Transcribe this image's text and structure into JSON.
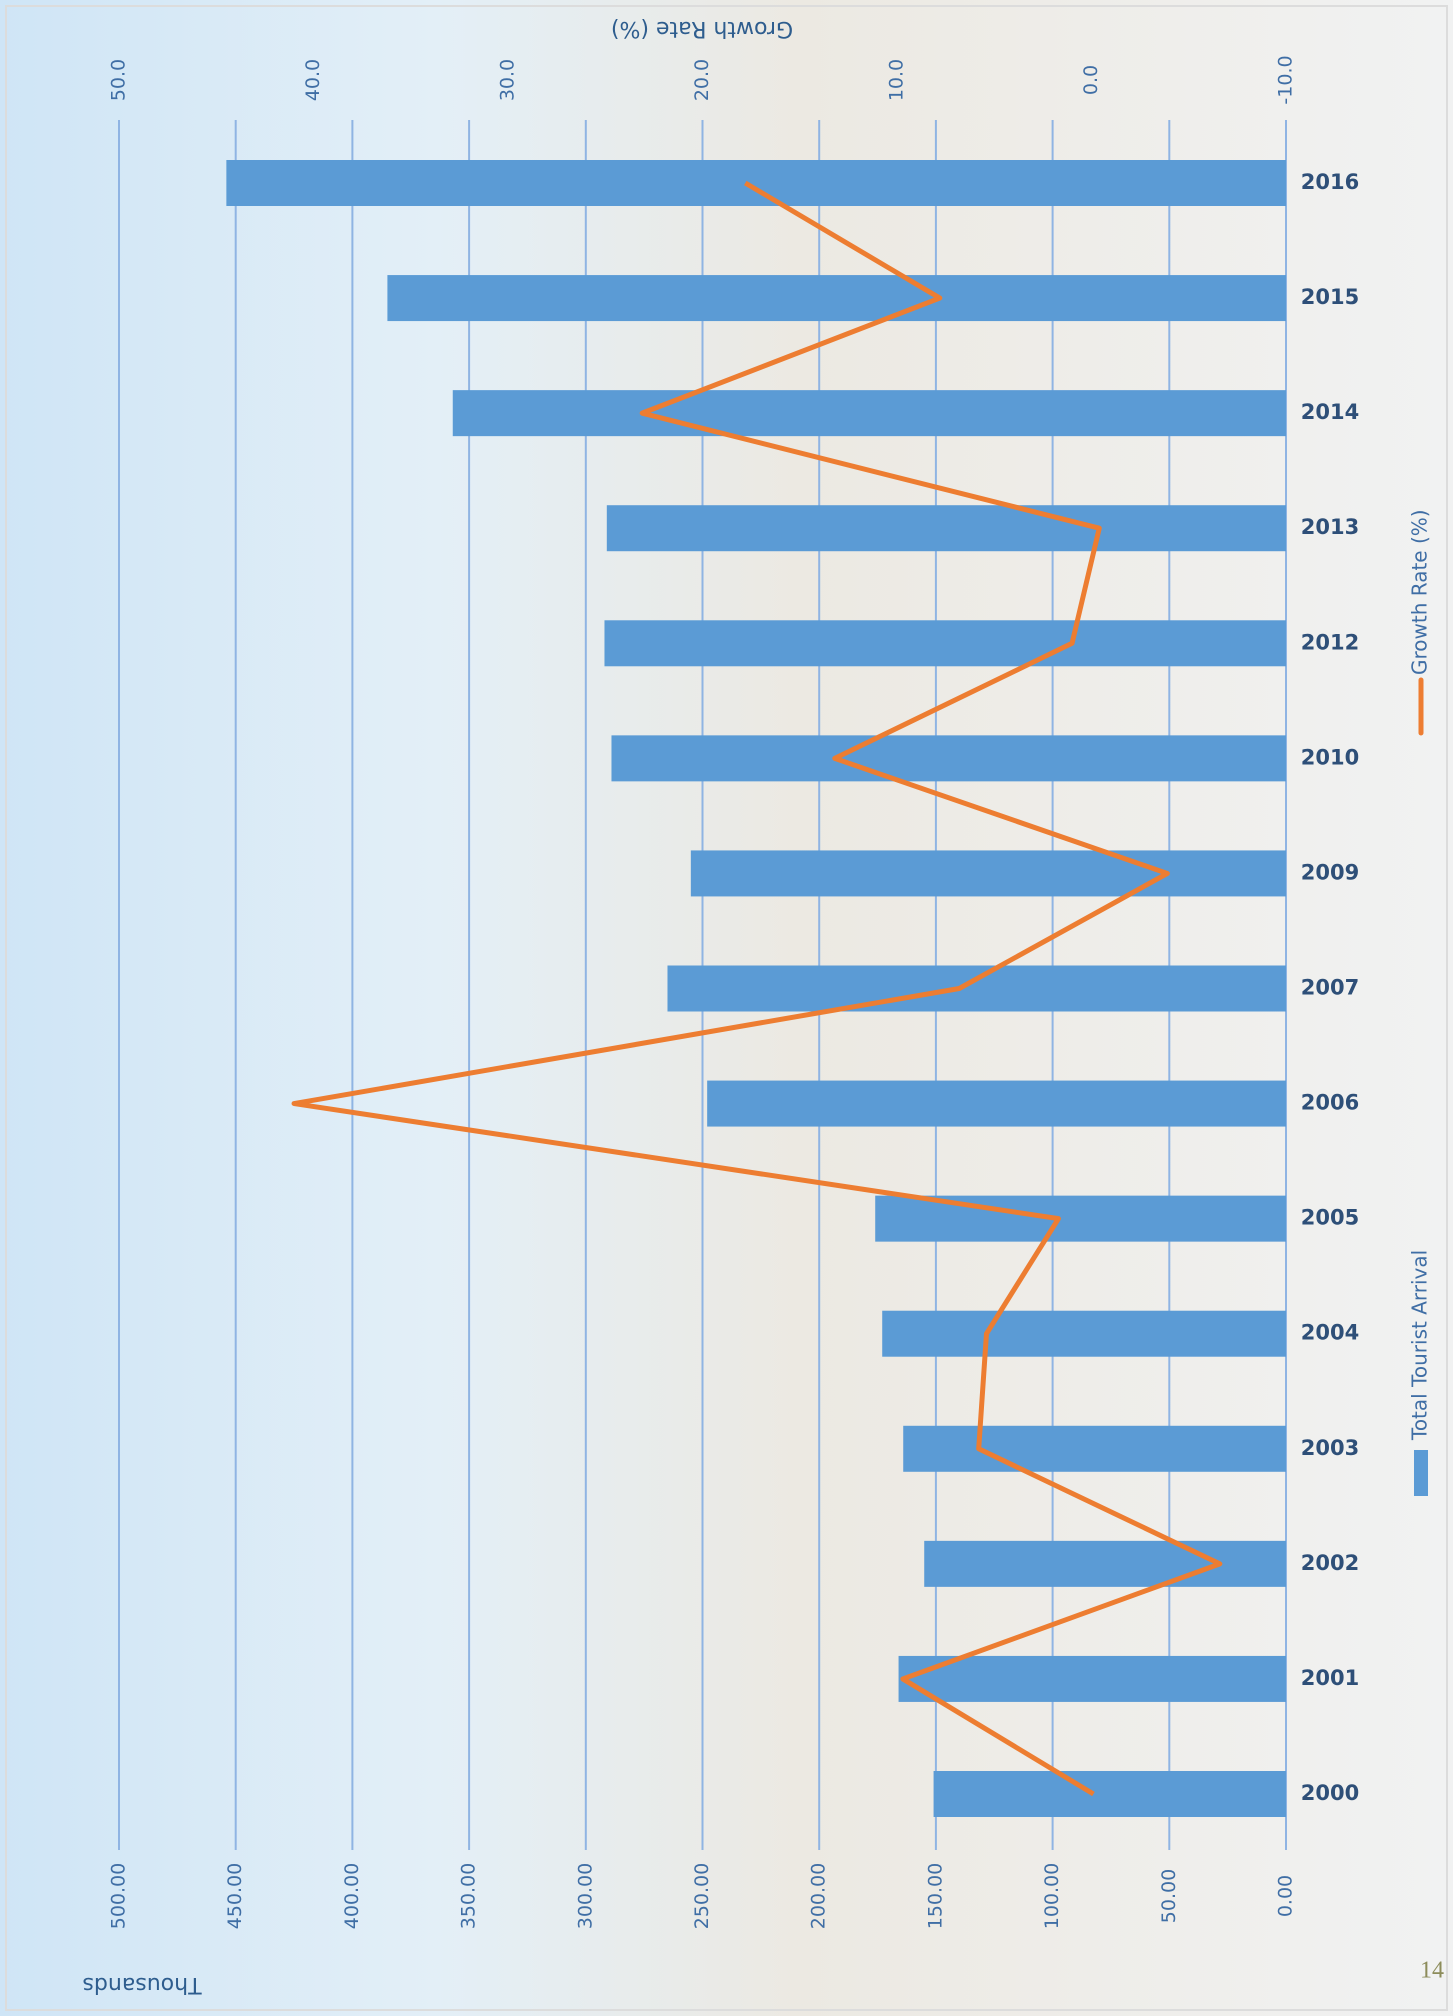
{
  "chart_data": {
    "type": "bar-line",
    "categories": [
      "2000",
      "2001",
      "2002",
      "2003",
      "2004",
      "2005",
      "2006",
      "2007",
      "2009",
      "2010",
      "2012",
      "2013",
      "2014",
      "2015",
      "2016"
    ],
    "series": [
      {
        "name": "Total Tourist Arrival",
        "color": "#5b9bd5",
        "type": "bar",
        "values": [
          151,
          166,
          155,
          164,
          173,
          176,
          248,
          265,
          255,
          289,
          292,
          291,
          357,
          385,
          454
        ]
      },
      {
        "name": "Growth Rate (%)",
        "color": "#ed7d31",
        "type": "line",
        "axis": "y2",
        "values": [
          -0.1,
          9.7,
          -6.6,
          5.8,
          5.4,
          1.7,
          41.0,
          6.8,
          -3.9,
          13.2,
          1.0,
          -0.4,
          23.1,
          7.8,
          17.8
        ]
      }
    ],
    "y_label": "Thousands",
    "y2_label": "Growth Rate (%)",
    "ylim": [
      0,
      500
    ],
    "yticks": [
      {
        "value": 0,
        "label": "0.00"
      },
      {
        "value": 50,
        "label": "50.00"
      },
      {
        "value": 100,
        "label": "100.00"
      },
      {
        "value": 150,
        "label": "150.00"
      },
      {
        "value": 200,
        "label": "200.00"
      },
      {
        "value": 250,
        "label": "250.00"
      },
      {
        "value": 300,
        "label": "300.00"
      },
      {
        "value": 350,
        "label": "350.00"
      },
      {
        "value": 400,
        "label": "400.00"
      },
      {
        "value": 450,
        "label": "450.00"
      },
      {
        "value": 500,
        "label": "500.00"
      }
    ],
    "y2lim": [
      -10,
      50
    ],
    "y2ticks": [
      {
        "value": -10,
        "label": "-10.0"
      },
      {
        "value": 0,
        "label": "0.0"
      },
      {
        "value": 10,
        "label": "10.0"
      },
      {
        "value": 20,
        "label": "20.0"
      },
      {
        "value": 30,
        "label": "30.0"
      },
      {
        "value": 40,
        "label": "40.0"
      },
      {
        "value": 50,
        "label": "50.0"
      }
    ],
    "grid": true,
    "legend": "right"
  },
  "page_number": "14"
}
